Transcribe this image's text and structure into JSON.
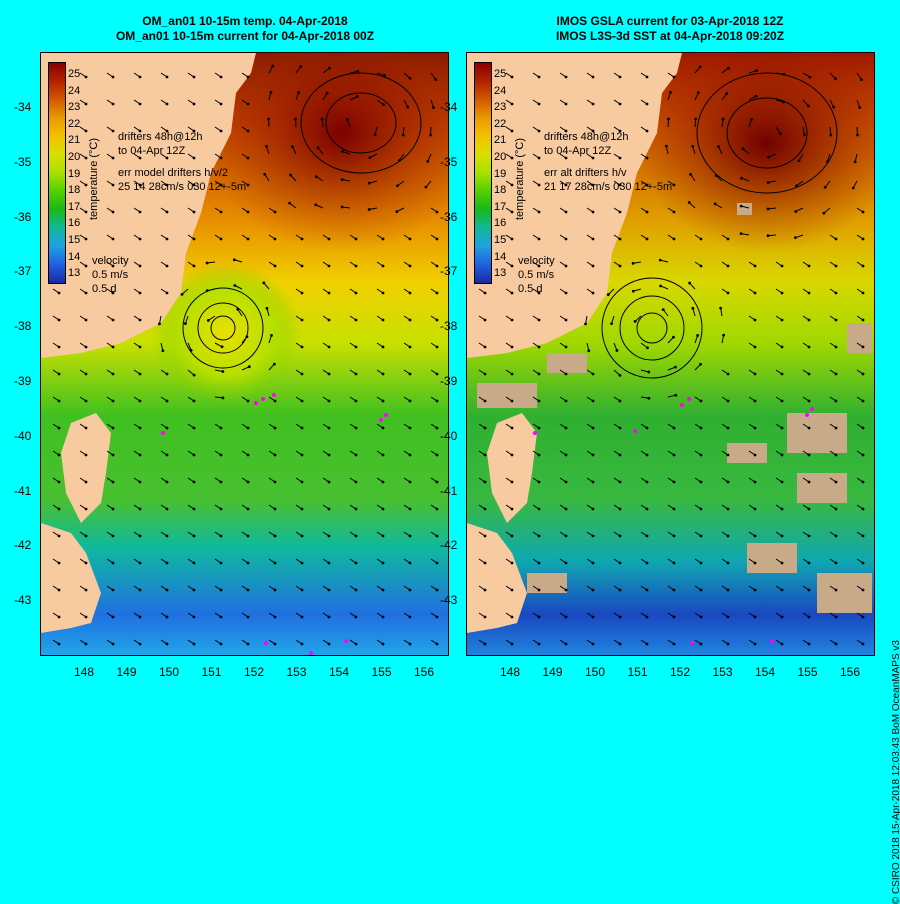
{
  "left_panel": {
    "title_line1": "OM_an01 10-15m temp. 04-Apr-2018",
    "title_line2": "OM_an01 10-15m current for 04-Apr-2018 00Z",
    "drifters_line1": "drifters 48h@12h",
    "drifters_line2": "to 04-Apr 12Z",
    "err_line1": "err model drifters h/v/2",
    "err_line2": "25 14 28cm/s 030 12+-5m"
  },
  "right_panel": {
    "title_line1": "IMOS GSLA current for 03-Apr-2018 12Z",
    "title_line2": "IMOS L3S-3d SST at 04-Apr-2018 09:20Z",
    "drifters_line1": "drifters 48h@12h",
    "drifters_line2": "to 04-Apr 12Z",
    "err_line1": "err alt drifters h/v",
    "err_line2": "21 17 28cm/s 030 12+-5m"
  },
  "velocity_legend": {
    "label": "velocity",
    "speed": "0.5 m/s",
    "duration": "0.5 d"
  },
  "colorbar": {
    "title": "temperature (°C)",
    "ticks": [
      "25",
      "24",
      "23",
      "22",
      "21",
      "20",
      "19",
      "18",
      "17",
      "16",
      "15",
      "14",
      "13"
    ],
    "colors": [
      "#8b0000",
      "#b22200",
      "#d25a00",
      "#e89a00",
      "#f2c200",
      "#d8e000",
      "#a8e000",
      "#52d000",
      "#18b818",
      "#10b89a",
      "#20a0e0",
      "#2060e0",
      "#1a28a0"
    ]
  },
  "y_axis_labels": [
    "-34",
    "-35",
    "-36",
    "-37",
    "-38",
    "-39",
    "-40",
    "-41",
    "-42",
    "-43"
  ],
  "x_axis_labels": [
    "148",
    "149",
    "150",
    "151",
    "152",
    "153",
    "154",
    "155",
    "156"
  ],
  "credit": "© CSIRO 2018  15-Apr-2018 12:03:43 BoM OceanMAPS v3",
  "map_colors": {
    "land": "#f8caa0",
    "background": "#00ffff",
    "missing": "#c8aa88"
  }
}
